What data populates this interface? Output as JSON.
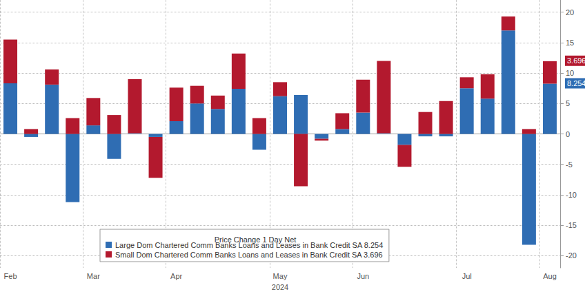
{
  "chart_data": {
    "type": "bar",
    "stacked": true,
    "legend_title": "Price Change 1 Day Net",
    "x_label": "2024",
    "categories": [
      "Feb",
      null,
      null,
      null,
      "Mar",
      null,
      null,
      null,
      "Apr",
      null,
      null,
      null,
      null,
      "May",
      null,
      null,
      null,
      "Jun",
      null,
      null,
      null,
      null,
      "Jul",
      null,
      null,
      null,
      "Aug"
    ],
    "series": [
      {
        "name": "Large Dom Chartered Comm Banks Loans and Leases in Bank Credit SA 8.254",
        "color": "#2f6db3",
        "values": [
          8.3,
          -0.5,
          8.1,
          -11.2,
          1.4,
          -4.1,
          0.1,
          -0.5,
          2.1,
          5.0,
          4.1,
          7.4,
          -2.6,
          6.2,
          6.4,
          -0.8,
          0.8,
          3.5,
          0.1,
          -1.8,
          -0.4,
          -0.4,
          7.5,
          5.8,
          17.0,
          -18.2,
          8.254
        ]
      },
      {
        "name": "Small Dom Chartered Comm Banks Loans and Leases in Bank Credit SA 3.696",
        "color": "#b3192e",
        "values": [
          7.2,
          0.8,
          2.5,
          2.6,
          4.5,
          3.1,
          8.9,
          -6.7,
          5.5,
          2.9,
          2.2,
          5.8,
          2.6,
          2.3,
          -8.6,
          -0.3,
          2.6,
          5.4,
          11.9,
          -3.6,
          3.6,
          5.4,
          1.8,
          4.0,
          2.3,
          0.8,
          3.696
        ]
      }
    ],
    "ylim": [
      -22,
      22
    ],
    "yticks": [
      -20,
      -15,
      -10,
      -5,
      0,
      5,
      10,
      15,
      20
    ],
    "grid": true,
    "legend": "bottom"
  }
}
